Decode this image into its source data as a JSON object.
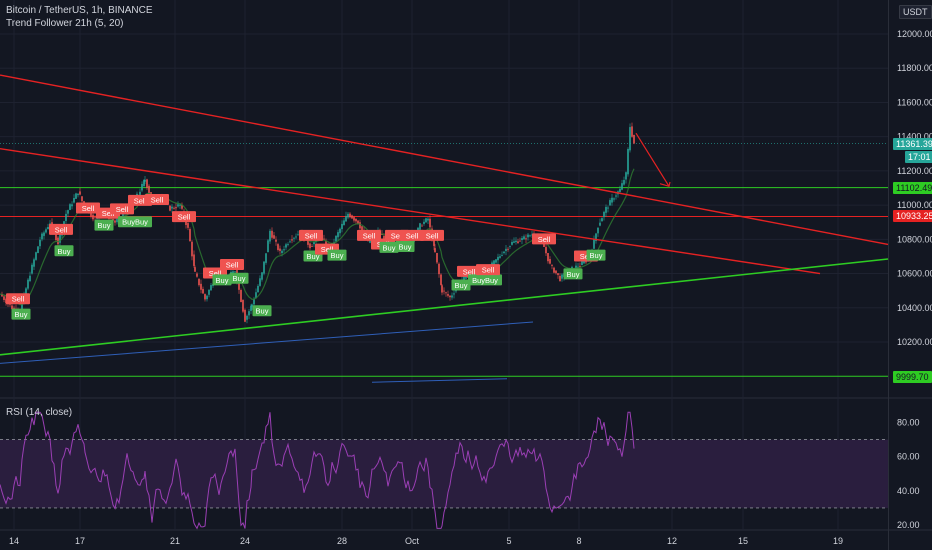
{
  "header": {
    "title": "Bitcoin / TetherUS, 1h, BINANCE",
    "indicator": "Trend Follower 21h (5, 20)",
    "currency_badge": "USDT",
    "rsi_label": "RSI (14, close)"
  },
  "chart_data": [
    {
      "type": "candlestick",
      "title": "Bitcoin / TetherUS, 1h, BINANCE",
      "ylim": [
        9900,
        12150
      ],
      "y_ticks": [
        10200,
        10400,
        10600,
        10800,
        11000,
        11200,
        11400,
        11600,
        11800,
        12000
      ],
      "y_tick_labels": [
        "10200.00",
        "10400.00",
        "10600.00",
        "10800.00",
        "11000.00",
        "11200.00",
        "11400.00",
        "11600.00",
        "11800.00",
        "12000.00"
      ],
      "x_ticks": [
        "14",
        "17",
        "21",
        "24",
        "28",
        "Oct",
        "5",
        "8",
        "12",
        "15",
        "19"
      ],
      "price_marks": {
        "last_price": "11361.39",
        "countdown": "17:01",
        "green_level": "11102.49",
        "red_level": "10933.25",
        "bottom_level": "9999.70"
      },
      "signals": [
        {
          "label": "Sell",
          "x": 61,
          "v": 10855,
          "type": "sell"
        },
        {
          "label": "Buy",
          "x": 64,
          "v": 10730,
          "type": "buy"
        },
        {
          "label": "Sell",
          "x": 88,
          "v": 10980,
          "type": "sell"
        },
        {
          "label": "Sell",
          "x": 108,
          "v": 10950,
          "type": "sell"
        },
        {
          "label": "Buy",
          "x": 104,
          "v": 10880,
          "type": "buy"
        },
        {
          "label": "Sell",
          "x": 122,
          "v": 10975,
          "type": "sell"
        },
        {
          "label": "BuyBuy",
          "x": 135,
          "v": 10900,
          "type": "buy"
        },
        {
          "label": "Sell",
          "x": 140,
          "v": 11025,
          "type": "sell"
        },
        {
          "label": "Sell",
          "x": 157,
          "v": 11030,
          "type": "sell"
        },
        {
          "label": "Sell",
          "x": 184,
          "v": 10930,
          "type": "sell"
        },
        {
          "label": "Sell",
          "x": 232,
          "v": 10650,
          "type": "sell"
        },
        {
          "label": "Sell",
          "x": 215,
          "v": 10600,
          "type": "sell"
        },
        {
          "label": "Buy",
          "x": 222,
          "v": 10560,
          "type": "buy"
        },
        {
          "label": "Buy",
          "x": 239,
          "v": 10570,
          "type": "buy"
        },
        {
          "label": "Buy",
          "x": 262,
          "v": 10380,
          "type": "buy"
        },
        {
          "label": "Sell",
          "x": 18,
          "v": 10450,
          "type": "sell"
        },
        {
          "label": "Buy",
          "x": 21,
          "v": 10360,
          "type": "buy"
        },
        {
          "label": "Sell",
          "x": 311,
          "v": 10820,
          "type": "sell"
        },
        {
          "label": "Buy",
          "x": 313,
          "v": 10700,
          "type": "buy"
        },
        {
          "label": "Sell",
          "x": 327,
          "v": 10740,
          "type": "sell"
        },
        {
          "label": "Buy",
          "x": 337,
          "v": 10705,
          "type": "buy"
        },
        {
          "label": "Sell",
          "x": 369,
          "v": 10820,
          "type": "sell"
        },
        {
          "label": "Sell",
          "x": 383,
          "v": 10770,
          "type": "sell"
        },
        {
          "label": "Buy",
          "x": 389,
          "v": 10750,
          "type": "buy"
        },
        {
          "label": "Sell",
          "x": 397,
          "v": 10820,
          "type": "sell"
        },
        {
          "label": "Sell",
          "x": 412,
          "v": 10820,
          "type": "sell"
        },
        {
          "label": "Buy",
          "x": 405,
          "v": 10755,
          "type": "buy"
        },
        {
          "label": "Sell",
          "x": 432,
          "v": 10820,
          "type": "sell"
        },
        {
          "label": "Sell",
          "x": 469,
          "v": 10610,
          "type": "sell"
        },
        {
          "label": "Buy",
          "x": 461,
          "v": 10530,
          "type": "buy"
        },
        {
          "label": "BuyBuy",
          "x": 485,
          "v": 10560,
          "type": "buy"
        },
        {
          "label": "Sell",
          "x": 488,
          "v": 10620,
          "type": "sell"
        },
        {
          "label": "Sell",
          "x": 544,
          "v": 10800,
          "type": "sell"
        },
        {
          "label": "Buy",
          "x": 573,
          "v": 10595,
          "type": "buy"
        },
        {
          "label": "Sell",
          "x": 586,
          "v": 10700,
          "type": "sell"
        },
        {
          "label": "Buy",
          "x": 596,
          "v": 10705,
          "type": "buy"
        }
      ]
    },
    {
      "type": "line",
      "title": "RSI (14, close)",
      "ylim": [
        10,
        90
      ],
      "y_ticks": [
        20,
        40,
        60,
        80
      ],
      "y_tick_labels": [
        "20.00",
        "40.00",
        "60.00",
        "80.00"
      ],
      "bands": [
        30,
        70
      ]
    }
  ],
  "colors": {
    "background": "#131722",
    "grid": "#1e2230",
    "candle_up": "#26a69a",
    "candle_down": "#ef5350",
    "trend_red": "#e52222",
    "trend_green": "#2ecc23",
    "trend_blue": "#2f5fb8",
    "rsi_line": "#9b3fb5",
    "rsi_fill": "#2a1e3e",
    "buy": "#4caf50",
    "sell": "#ef5350"
  }
}
